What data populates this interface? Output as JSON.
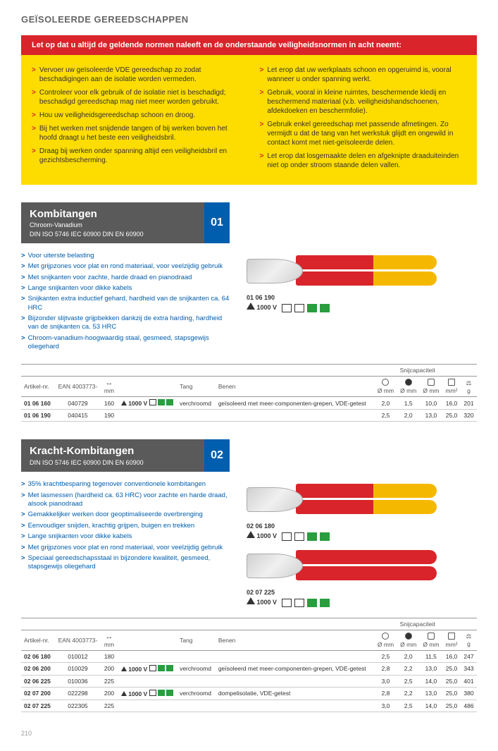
{
  "page": {
    "title": "GEÏSOLEERDE GEREEDSCHAPPEN",
    "number": "210"
  },
  "warning": {
    "header": "Let op dat u altijd de geldende normen naleeft en de onderstaande veiligheidsnormen in acht neemt:",
    "left": [
      "Vervoer uw geïsoleerde VDE gereedschap zo zodat beschadigingen aan de isolatie worden vermeden.",
      "Controleer voor elk gebruik of de isolatie niet is beschadigd; beschadigd gereedschap mag niet meer worden gebruikt.",
      "Hou uw veiligheidsgereedschap schoon en droog.",
      "Bij het werken met snijdende tangen of bij werken boven het hoofd draagt u het beste een veiligheidsbril.",
      "Draag bij werken onder spanning altijd een veiligheidsbril en gezichtsbescherming."
    ],
    "right": [
      "Let erop dat uw werkplaats schoon en opgeruimd is, vooral wanneer u onder spanning werkt.",
      "Gebruik, vooral in kleine ruimtes, beschermende kledij en beschermend materiaal (v.b. veiligheidshandschoenen, afdekdoeken en beschermfolie).",
      "Gebruik enkel gereedschap met passende afmetingen. Zo vermijdt u dat de tang van het werkstuk glijdt en ongewild in contact komt met niet-geïsoleerde delen.",
      "Let erop dat losgemaakte delen en afgeknipte draaduiteinden niet op onder stroom staande delen vallen."
    ]
  },
  "section1": {
    "title": "Kombitangen",
    "subtitle": "Chroom-Vanadium",
    "norms": "DIN ISO 5746   IEC 60900   DIN EN 60900",
    "number": "01",
    "features": [
      "Voor uiterste belasting",
      "Met grijpzones voor plat en rond materiaal, voor veelzijdig gebruik",
      "Met snijkanten voor zachte, harde draad en pianodraad",
      "Lange snijkanten voor dikke kabels",
      "Snijkanten extra inductief gehard, hardheid van de snijkanten ca. 64 HRC",
      "Bijzonder slijtvaste grijpbekken dankzij de extra harding, hardheid van de snijkanten ca. 53 HRC",
      "Chroom-vanadium-hoogwaardig staal, gesmeed, stapsgewijs oliegehard"
    ],
    "image1": {
      "code": "01 06 190",
      "rating": "1000 V"
    },
    "table": {
      "group_header": "Snijcapaciteit",
      "headers": [
        "Artikel-nr.",
        "EAN 4003773-",
        "mm",
        "",
        "Tang",
        "Benen",
        "Ø mm",
        "Ø mm",
        "Ø mm",
        "mm²",
        "g"
      ],
      "icon_headers": [
        "circle-outline",
        "circle-solid",
        "gear",
        "square",
        "weight"
      ],
      "rows": [
        {
          "art": "01 06 160",
          "ean": "040729",
          "mm": "160",
          "rating": "1000 V",
          "tang": "verchroomd",
          "benen": "geïsoleerd met meer-componenten-grepen, VDE-getest",
          "c1": "2,0",
          "c2": "1,5",
          "c3": "10,0",
          "c4": "16,0",
          "g": "201"
        },
        {
          "art": "01 06 190",
          "ean": "040415",
          "mm": "190",
          "rating": "",
          "tang": "",
          "benen": "",
          "c1": "2,5",
          "c2": "2,0",
          "c3": "13,0",
          "c4": "25,0",
          "g": "320"
        }
      ]
    }
  },
  "section2": {
    "title": "Kracht-Kombitangen",
    "subtitle": "",
    "norms": "DIN ISO 5746   IEC 60900   DIN EN 60900",
    "number": "02",
    "features": [
      "35% krachtbesparing tegenover conventionele kombitangen",
      "Met lasmessen (hardheid ca. 63 HRC) voor zachte en harde draad, alsook pianodraad",
      "Gemakkelijker werken door geoptimaliseerde overbrenging",
      "Eenvoudiger snijden, krachtig grijpen, buigen en trekken",
      "Lange snijkanten voor dikke kabels",
      "Met grijpzones voor plat en rond materiaal, voor veelzijdig gebruik",
      "Speciaal gereedschapsstaal in bijzondere kwaliteit, gesmeed, stapsgewijs oliegehard"
    ],
    "image1": {
      "code": "02 06 180",
      "rating": "1000 V"
    },
    "image2": {
      "code": "02 07 225",
      "rating": "1000 V"
    },
    "table": {
      "group_header": "Snijcapaciteit",
      "headers": [
        "Artikel-nr.",
        "EAN 4003773-",
        "mm",
        "",
        "Tang",
        "Benen",
        "Ø mm",
        "Ø mm",
        "Ø mm",
        "mm²",
        "g"
      ],
      "rows": [
        {
          "art": "02 06 180",
          "ean": "010012",
          "mm": "180",
          "rating": "",
          "tang": "",
          "benen": "",
          "c1": "2,5",
          "c2": "2,0",
          "c3": "11,5",
          "c4": "16,0",
          "g": "247"
        },
        {
          "art": "02 06 200",
          "ean": "010029",
          "mm": "200",
          "rating": "1000 V",
          "tang": "verchroomd",
          "benen": "geïsoleerd met meer-componenten-grepen, VDE-getest",
          "c1": "2,8",
          "c2": "2,2",
          "c3": "13,0",
          "c4": "25,0",
          "g": "343"
        },
        {
          "art": "02 06 225",
          "ean": "010036",
          "mm": "225",
          "rating": "",
          "tang": "",
          "benen": "",
          "c1": "3,0",
          "c2": "2,5",
          "c3": "14,0",
          "c4": "25,0",
          "g": "401"
        },
        {
          "art": "02 07 200",
          "ean": "022298",
          "mm": "200",
          "rating": "1000 V",
          "tang": "verchroomd",
          "benen": "dompelisolatie, VDE-getest",
          "c1": "2,8",
          "c2": "2,2",
          "c3": "13,0",
          "c4": "25,0",
          "g": "380"
        },
        {
          "art": "02 07 225",
          "ean": "022305",
          "mm": "225",
          "rating": "",
          "tang": "",
          "benen": "",
          "c1": "3,0",
          "c2": "2,5",
          "c3": "14,0",
          "c4": "25,0",
          "g": "486"
        }
      ]
    }
  }
}
